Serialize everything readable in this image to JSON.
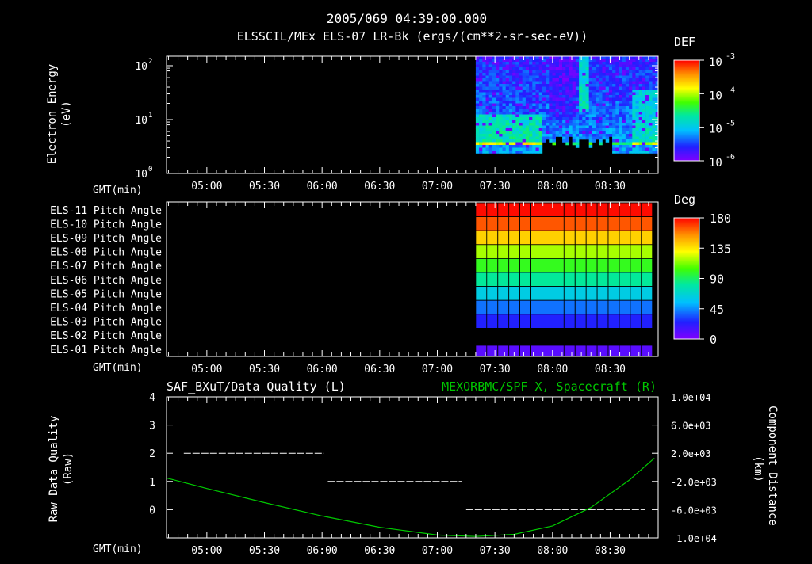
{
  "header": {
    "timestamp": "2005/069 04:39:00.000",
    "title": "ELSSCIL/MEx ELS-07 LR-Bk  (ergs/(cm**2-sr-sec-eV))"
  },
  "chart_data": [
    {
      "type": "heatmap",
      "name": "electron-spectrogram",
      "ylabel_line1": "Electron Energy",
      "ylabel_line2": "(eV)",
      "yscale": "log",
      "ylim": [
        1,
        150
      ],
      "y_ticks": [
        {
          "value": 1,
          "base": "10",
          "exp": "0"
        },
        {
          "value": 10,
          "base": "10",
          "exp": "1"
        },
        {
          "value": 100,
          "base": "10",
          "exp": "2"
        }
      ],
      "xlabel": "GMT(min)",
      "x_ticks": [
        "05:00",
        "05:30",
        "06:00",
        "06:30",
        "07:00",
        "07:30",
        "08:00",
        "08:30"
      ],
      "data_window": [
        "07:20",
        "08:55"
      ],
      "colorbar": {
        "label": "DEF",
        "scale": "log",
        "ticks": [
          {
            "base": "10",
            "exp": "-3"
          },
          {
            "base": "10",
            "exp": "-4"
          },
          {
            "base": "10",
            "exp": "-5"
          },
          {
            "base": "10",
            "exp": "-6"
          }
        ]
      }
    },
    {
      "type": "heatmap",
      "name": "pitch-angle-panel",
      "xlabel": "GMT(min)",
      "x_ticks": [
        "05:00",
        "05:30",
        "06:00",
        "06:30",
        "07:00",
        "07:30",
        "08:00",
        "08:30"
      ],
      "rows": [
        {
          "label": "ELS-11 Pitch Angle",
          "value": 178
        },
        {
          "label": "ELS-10 Pitch Angle",
          "value": 165
        },
        {
          "label": "ELS-09 Pitch Angle",
          "value": 140
        },
        {
          "label": "ELS-08 Pitch Angle",
          "value": 118
        },
        {
          "label": "ELS-07 Pitch Angle",
          "value": 100
        },
        {
          "label": "ELS-06 Pitch Angle",
          "value": 82
        },
        {
          "label": "ELS-05 Pitch Angle",
          "value": 62
        },
        {
          "label": "ELS-04 Pitch Angle",
          "value": 40
        },
        {
          "label": "ELS-03 Pitch Angle",
          "value": 25
        },
        {
          "label": "ELS-02 Pitch Angle",
          "value": null
        },
        {
          "label": "ELS-01 Pitch Angle",
          "value": 10
        }
      ],
      "data_window": [
        "07:20",
        "08:52"
      ],
      "colorbar": {
        "label": "Deg",
        "ticks": [
          "180",
          "135",
          "90",
          "45",
          "0"
        ]
      }
    },
    {
      "type": "line",
      "name": "data-quality-panel",
      "title_left": "SAF_BXuT/Data Quality (L)",
      "title_right": "MEXORBMC/SPF X, Spacecraft (R)",
      "xlabel": "GMT(min)",
      "x_ticks": [
        "05:00",
        "05:30",
        "06:00",
        "06:30",
        "07:00",
        "07:30",
        "08:00",
        "08:30"
      ],
      "y_left": {
        "label_line1": "Raw Data Quality",
        "label_line2": "(Raw)",
        "ylim": [
          -1,
          4
        ],
        "ticks": [
          "-1",
          "0",
          "1",
          "2",
          "3",
          "4"
        ]
      },
      "y_right": {
        "label_line1": "Component",
        "label_line2": "Distance",
        "label_line3": "(km)",
        "ylim": [
          -10000,
          10000
        ],
        "ticks": [
          "-1.0e+04",
          "-6.0e+03",
          "-2.0e+03",
          "2.0e+03",
          "6.0e+03",
          "1.0e+04"
        ]
      },
      "series": [
        {
          "name": "SAF_BXuT/Data Quality",
          "axis": "left",
          "color": "#ffffff",
          "segments": [
            {
              "x": [
                "04:48",
                "06:01"
              ],
              "y": 2
            },
            {
              "x": [
                "06:03",
                "07:13"
              ],
              "y": 1
            },
            {
              "x": [
                "07:15",
                "08:48"
              ],
              "y": 0
            }
          ]
        },
        {
          "name": "MEXORBMC/SPF X, Spacecraft",
          "axis": "right",
          "color": "#00c800",
          "x": [
            "04:39",
            "05:00",
            "05:30",
            "06:00",
            "06:30",
            "07:00",
            "07:20",
            "07:40",
            "08:00",
            "08:20",
            "08:40",
            "08:53"
          ],
          "y": [
            -1500,
            -3000,
            -5000,
            -6900,
            -8500,
            -9600,
            -9800,
            -9500,
            -8300,
            -5700,
            -1800,
            1300
          ]
        }
      ]
    }
  ],
  "colors": {
    "background": "#000000",
    "foreground": "#ffffff",
    "trace_green": "#00c800"
  }
}
